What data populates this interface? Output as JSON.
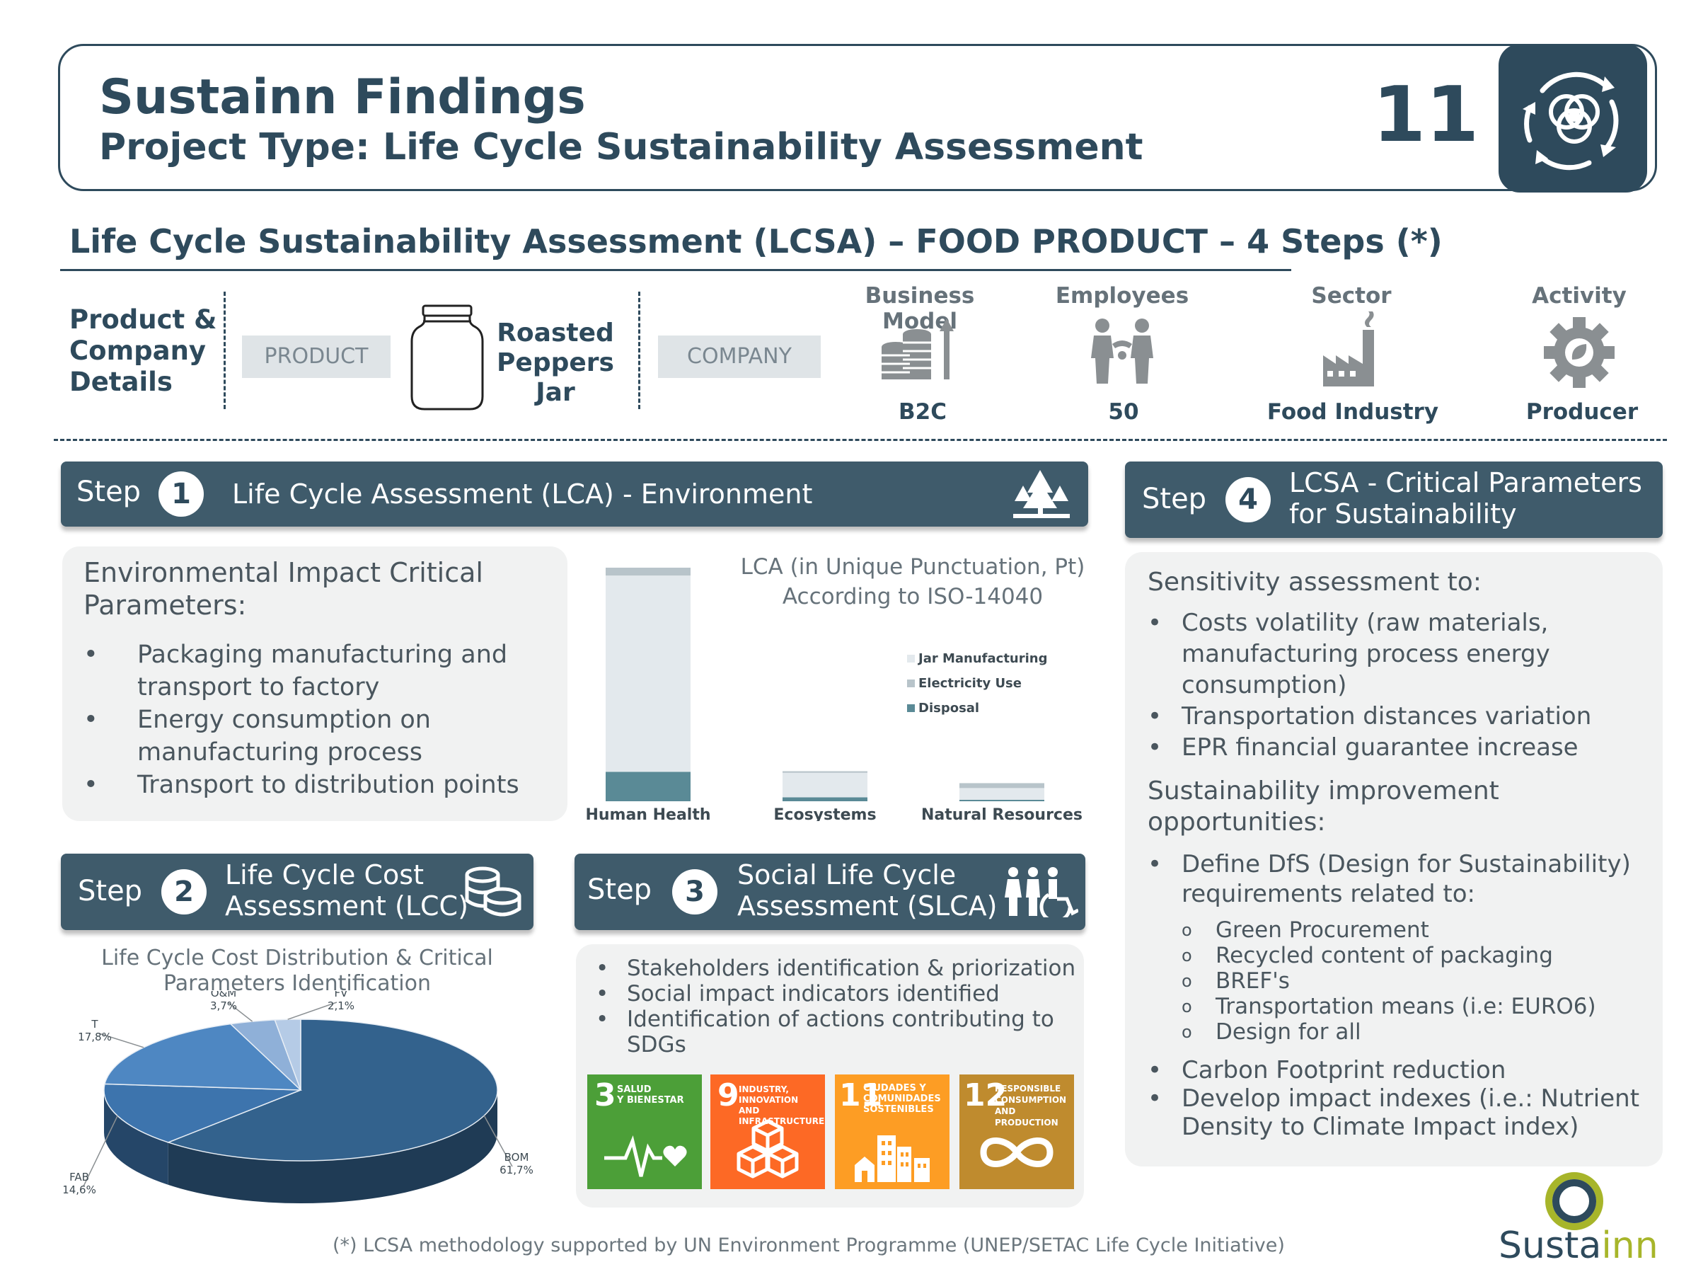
{
  "header": {
    "title": "Sustainn Findings",
    "subtitle": "Project Type: Life Cycle Sustainability Assessment",
    "page_number": "11"
  },
  "section_title": "Life Cycle Sustainability Assessment (LCSA) – FOOD PRODUCT – 4 Steps (*)",
  "details": {
    "label": [
      "Product &",
      "Company",
      "Details"
    ],
    "product_pill": "PRODUCT",
    "product_name": [
      "Roasted",
      "Peppers",
      "Jar"
    ],
    "company_pill": "COMPANY",
    "attributes": [
      {
        "heading": "Business Model",
        "value": "B2C",
        "icon": "coins-growth-icon"
      },
      {
        "heading": "Employees",
        "value": "50",
        "icon": "people-icon"
      },
      {
        "heading": "Sector",
        "value": "Food Industry",
        "icon": "factory-icon"
      },
      {
        "heading": "Activity",
        "value": "Producer",
        "icon": "gear-leaf-icon"
      }
    ]
  },
  "step1": {
    "word": "Step",
    "num": "1",
    "title": "Life Cycle Assessment (LCA) - Environment",
    "panel_heading": [
      "Environmental Impact Critical",
      "Parameters:"
    ],
    "bullets": [
      [
        "Packaging manufacturing and",
        "transport to factory"
      ],
      [
        "Energy consumption on",
        "manufacturing process"
      ],
      [
        "Transport to distribution points"
      ]
    ],
    "chart_caption": [
      "LCA (in Unique Punctuation, Pt)",
      "According to ISO-14040"
    ]
  },
  "step2": {
    "word": "Step",
    "num": "2",
    "title": [
      "Life Cycle Cost",
      "Assessment (LCC)"
    ],
    "chart_title": [
      "Life Cycle Cost Distribution & Critical",
      "Parameters Identification"
    ]
  },
  "step3": {
    "word": "Step",
    "num": "3",
    "title": [
      "Social Life Cycle",
      "Assessment (SLCA)"
    ],
    "bullets": [
      [
        "Stakeholders identification & priorization"
      ],
      [
        "Social impact indicators identified"
      ],
      [
        "Identification of actions contributing to",
        "SDGs"
      ]
    ],
    "sdgs": [
      {
        "num": "3",
        "label": [
          "SALUD",
          "Y BIENESTAR"
        ],
        "color": "#4c9f38",
        "icon": "heartbeat-icon"
      },
      {
        "num": "9",
        "label": [
          "INDUSTRY, INNOVATION",
          "AND INFRASTRUCTURE"
        ],
        "color": "#fd6925",
        "icon": "cubes-icon"
      },
      {
        "num": "11",
        "label": [
          "CIUDADES Y",
          "COMUNIDADES",
          "SOSTENIBLES"
        ],
        "color": "#fd9d24",
        "icon": "city-icon"
      },
      {
        "num": "12",
        "label": [
          "RESPONSIBLE",
          "CONSUMPTION",
          "AND PRODUCTION"
        ],
        "color": "#bf8b2e",
        "icon": "infinity-icon"
      }
    ]
  },
  "step4": {
    "word": "Step",
    "num": "4",
    "title": [
      "LCSA - Critical Parameters",
      "for Sustainability"
    ],
    "heading1": "Sensitivity assessment to:",
    "bullets1": [
      [
        "Costs volatility (raw materials,",
        "manufacturing process energy",
        "consumption)"
      ],
      [
        "Transportation distances variation"
      ],
      [
        "EPR financial guarantee increase"
      ]
    ],
    "heading2": [
      "Sustainability improvement",
      "opportunities:"
    ],
    "bullets2": [
      [
        "Define DfS (Design for Sustainability)",
        "requirements related to:"
      ]
    ],
    "sub_bullets": [
      "Green Procurement",
      "Recycled content of packaging",
      "BREF's",
      "Transportation means (i.e: EURO6)",
      "Design for all"
    ],
    "sub_marker": "o",
    "bullets3": [
      [
        "Carbon Footprint reduction"
      ],
      [
        "Develop impact indexes (i.e.: Nutrient",
        "Density to Climate Impact index)"
      ]
    ]
  },
  "footnote": "(*) LCSA methodology supported by UN Environment Programme (UNEP/SETAC Life Cycle Initiative)",
  "brand": {
    "wordmark_a": "Susta",
    "wordmark_b": "inn"
  },
  "colors": {
    "navy": "#2e4a5c",
    "banner": "#3f5b6b",
    "panel": "#f1f2f2",
    "teal": "#5a8a96",
    "pie_dark": "#33628d",
    "pie_mid": "#4e87c2",
    "pie_light": "#8fb0d8"
  },
  "chart_data": [
    {
      "type": "bar",
      "stacked": true,
      "categories": [
        "Human Health",
        "Ecosystems",
        "Natural Resources"
      ],
      "series": [
        {
          "name": "Jar Manufacturing",
          "values": [
            1.0,
            0.125,
            0.06
          ],
          "color": "#e3e9ed"
        },
        {
          "name": "Electricity Use",
          "values": [
            0.04,
            0.008,
            0.025
          ],
          "color": "#b8c4ca"
        },
        {
          "name": "Disposal",
          "values": [
            0.15,
            0.02,
            0.005
          ],
          "color": "#5a8a96"
        }
      ],
      "legend": "right",
      "grid": false
    },
    {
      "type": "pie",
      "style": "3d",
      "slices": [
        {
          "label": "BOM",
          "value_label": "61,7%",
          "value": 61.7,
          "color": "#33628d"
        },
        {
          "label": "FAB",
          "value_label": "14,6%",
          "value": 14.6,
          "color": "#3d74ad"
        },
        {
          "label": "T",
          "value_label": "17,8%",
          "value": 17.8,
          "color": "#4e87c2"
        },
        {
          "label": "O&M",
          "value_label": "3,7%",
          "value": 3.7,
          "color": "#8fb0d8"
        },
        {
          "label": "FV",
          "value_label": "2,1%",
          "value": 2.1,
          "color": "#b5cbe6"
        }
      ]
    }
  ]
}
